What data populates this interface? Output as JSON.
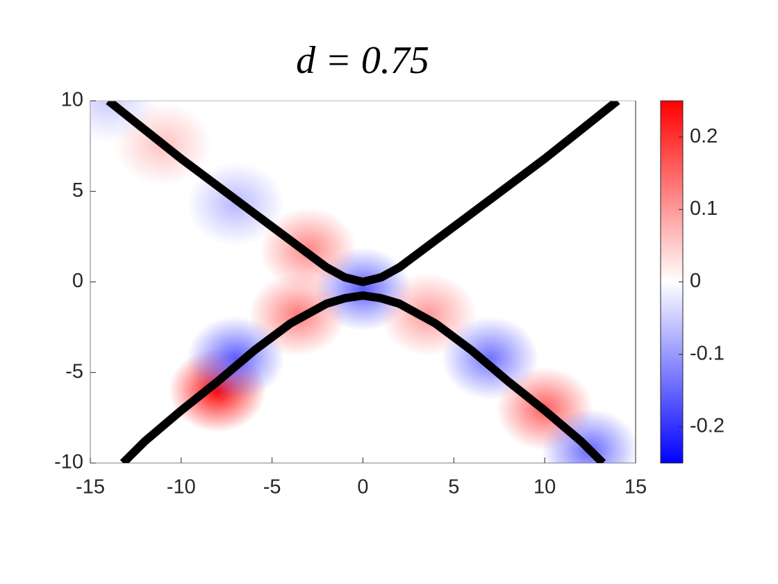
{
  "chart_data": {
    "type": "heatmap",
    "title": "d = 0.75",
    "xlim": [
      -15,
      15
    ],
    "xticks": [
      -15,
      -10,
      -5,
      0,
      5,
      10,
      15
    ],
    "ylim": [
      -10,
      10
    ],
    "yticks": [
      -10,
      -5,
      0,
      5,
      10
    ],
    "clim": [
      -0.25,
      0.25
    ],
    "cticks": [
      -0.2,
      -0.1,
      0,
      0.1,
      0.2
    ],
    "colormap": [
      "#0000ff",
      "#ffffff",
      "#ff0000"
    ],
    "field": [
      {
        "x": 0,
        "y": -0.4,
        "value": -0.16
      },
      {
        "x": -8,
        "y": -6,
        "value": 0.25
      },
      {
        "x": -3.6,
        "y": -1.8,
        "value": 0.13
      },
      {
        "x": 3.6,
        "y": -1.8,
        "value": 0.1
      },
      {
        "x": -7,
        "y": -4.2,
        "value": -0.16
      },
      {
        "x": 7,
        "y": -4.2,
        "value": -0.14
      },
      {
        "x": -3,
        "y": 1.8,
        "value": 0.12
      },
      {
        "x": -7,
        "y": 4.3,
        "value": -0.07
      },
      {
        "x": -11,
        "y": 7.6,
        "value": 0.06
      },
      {
        "x": -14,
        "y": 10,
        "value": -0.05
      },
      {
        "x": 10,
        "y": -7,
        "value": 0.16
      },
      {
        "x": 12.5,
        "y": -9.3,
        "value": -0.15
      }
    ],
    "series": [
      {
        "color": "#000000",
        "x": [
          -14,
          -12,
          -10,
          -8,
          -6,
          -4,
          -2,
          -1,
          0,
          1,
          2,
          4,
          6,
          8,
          10,
          12,
          14
        ],
        "values": [
          10,
          8.4,
          6.8,
          5.3,
          3.8,
          2.3,
          0.8,
          0.25,
          0,
          0.25,
          0.8,
          2.3,
          3.8,
          5.3,
          6.8,
          8.4,
          10
        ]
      },
      {
        "color": "#000000",
        "x": [
          -13.2,
          -12,
          -10,
          -8,
          -6,
          -4,
          -2,
          -1,
          0,
          1,
          2,
          4,
          6,
          8,
          10,
          12,
          13.2
        ],
        "values": [
          -10,
          -8.8,
          -7.1,
          -5.5,
          -3.8,
          -2.3,
          -1.2,
          -0.9,
          -0.75,
          -0.9,
          -1.2,
          -2.3,
          -3.8,
          -5.5,
          -7.1,
          -8.8,
          -10
        ]
      }
    ]
  }
}
